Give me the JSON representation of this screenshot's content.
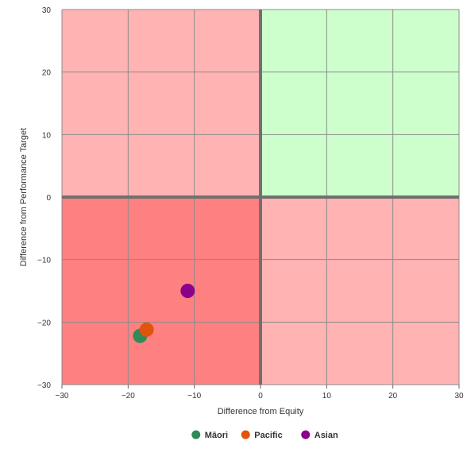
{
  "chart_data": {
    "type": "scatter",
    "title": "",
    "xlabel": "Difference from Equity",
    "ylabel": "Difference from Performance Target",
    "xlim": [
      -30,
      30
    ],
    "ylim": [
      -30,
      30
    ],
    "x_ticks": [
      -30,
      -20,
      -10,
      0,
      10,
      20,
      30
    ],
    "y_ticks": [
      -30,
      -20,
      -10,
      0,
      10,
      20,
      30
    ],
    "x_tick_labels": [
      "−30",
      "−20",
      "−10",
      "0",
      "10",
      "20",
      "30"
    ],
    "y_tick_labels": [
      "−30",
      "−20",
      "−10",
      "0",
      "10",
      "20",
      "30"
    ],
    "grid": true,
    "legend_position": "bottom",
    "quadrants": {
      "top_left": "#ffb3b3",
      "top_right": "#ccffcc",
      "bottom_left": "#ff8080",
      "bottom_right": "#ffb3b3"
    },
    "series": [
      {
        "name": "Māori",
        "color": "#2e8b57",
        "points": [
          {
            "x": -18.2,
            "y": -22.2
          }
        ]
      },
      {
        "name": "Pacific",
        "color": "#e0540c",
        "points": [
          {
            "x": -17.2,
            "y": -21.2
          }
        ]
      },
      {
        "name": "Asian",
        "color": "#8b008b",
        "points": [
          {
            "x": -11.0,
            "y": -15.0
          }
        ]
      }
    ]
  }
}
